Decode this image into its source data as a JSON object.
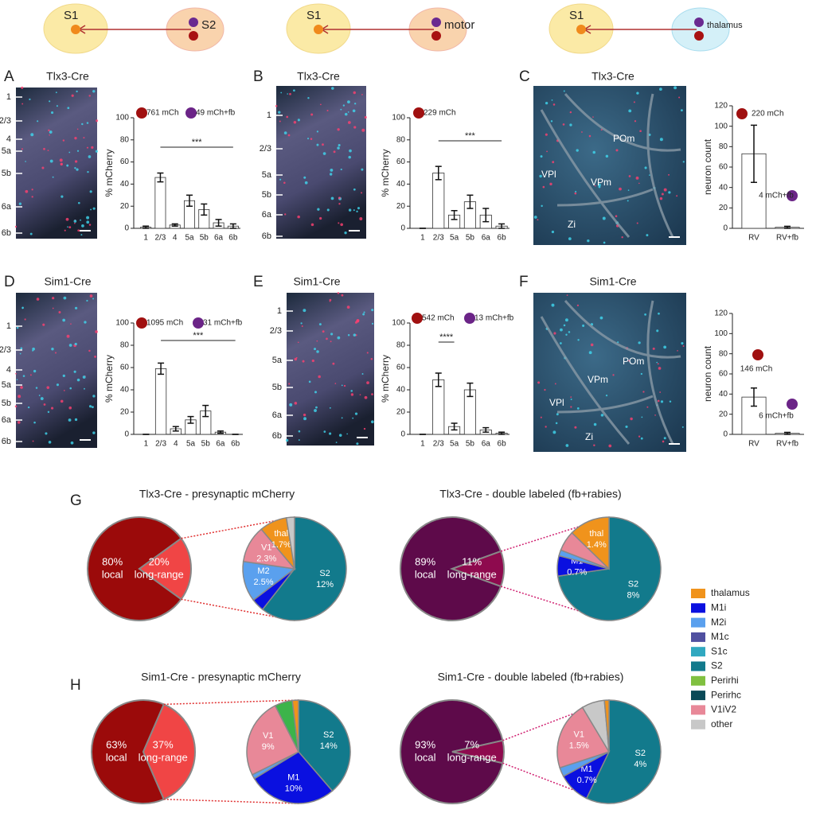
{
  "diagrams": [
    {
      "source": "S1",
      "target": "S2",
      "target_color": "#f9d3ad"
    },
    {
      "source": "S1",
      "target": "motor",
      "target_color": "#f9d3ad"
    },
    {
      "source": "S1",
      "target": "thalamus",
      "target_color": "#d4f0f8"
    }
  ],
  "panels": [
    {
      "letter": "A",
      "image_title": "Tlx3-Cre",
      "layer_labels": [
        "1",
        "2/3",
        "4",
        "5a",
        "5b",
        "6a",
        "6b"
      ]
    },
    {
      "letter": "B",
      "image_title": "Tlx3-Cre",
      "layer_labels": [
        "1",
        "2/3",
        "5a",
        "5b",
        "6a",
        "6b"
      ]
    },
    {
      "letter": "C",
      "image_title": "Tlx3-Cre",
      "region_labels": [
        "VPl",
        "VPm",
        "POm",
        "Zi"
      ]
    },
    {
      "letter": "D",
      "image_title": "Sim1-Cre",
      "layer_labels": [
        "1",
        "2/3",
        "4",
        "5a",
        "5b",
        "6a",
        "6b"
      ]
    },
    {
      "letter": "E",
      "image_title": "Sim1-Cre",
      "layer_labels": [
        "1",
        "2/3",
        "5a",
        "5b",
        "6a",
        "6b"
      ]
    },
    {
      "letter": "F",
      "image_title": "Sim1-Cre",
      "region_labels": [
        "VPl",
        "VPm",
        "POm",
        "Zi"
      ]
    }
  ],
  "chart_data": [
    {
      "type": "bar",
      "categories": [
        "1",
        "2/3",
        "4",
        "5a",
        "5b",
        "6a",
        "6b"
      ],
      "values": [
        1,
        46,
        3,
        25,
        17,
        5,
        2
      ],
      "errors": [
        1,
        4,
        1,
        5,
        5,
        3,
        2
      ],
      "ylim": [
        0,
        100
      ],
      "yticks": [
        0,
        20,
        40,
        60,
        80,
        100
      ],
      "ylabel": "% mCherry",
      "annotations": [
        {
          "text": "761 mCh",
          "color": "#a01010"
        },
        {
          "text": "49 mCh+fb",
          "color": "#6b2487"
        }
      ],
      "significance": "***"
    },
    {
      "type": "bar",
      "categories": [
        "1",
        "2/3",
        "5a",
        "5b",
        "6a",
        "6b"
      ],
      "values": [
        0,
        50,
        12,
        24,
        12,
        2
      ],
      "errors": [
        0,
        6,
        4,
        6,
        6,
        2
      ],
      "ylim": [
        0,
        100
      ],
      "yticks": [
        0,
        20,
        40,
        60,
        80,
        100
      ],
      "ylabel": "% mCherry",
      "annotations": [
        {
          "text": "229 mCh",
          "color": "#a01010"
        }
      ],
      "significance": "***"
    },
    {
      "type": "bar",
      "categories": [
        "RV",
        "RV+fb"
      ],
      "values": [
        73,
        1
      ],
      "errors": [
        28,
        1
      ],
      "ylim": [
        0,
        120
      ],
      "yticks": [
        0,
        20,
        40,
        60,
        80,
        100,
        120
      ],
      "ylabel": "neuron count",
      "annotations": [
        {
          "text": "220 mCh",
          "color": "#a01010"
        },
        {
          "text": "4 mCh+fb",
          "color": "#6b2487"
        }
      ]
    },
    {
      "type": "bar",
      "categories": [
        "1",
        "2/3",
        "4",
        "5a",
        "5b",
        "6a",
        "6b"
      ],
      "values": [
        0,
        59,
        5,
        13,
        21,
        2,
        0
      ],
      "errors": [
        0,
        5,
        2,
        3,
        5,
        1,
        0
      ],
      "ylim": [
        0,
        100
      ],
      "yticks": [
        0,
        20,
        40,
        60,
        80,
        100
      ],
      "ylabel": "% mCherry",
      "annotations": [
        {
          "text": "1095 mCh",
          "color": "#a01010"
        },
        {
          "text": "31 mCh+fb",
          "color": "#6b2487"
        }
      ],
      "significance": "***"
    },
    {
      "type": "bar",
      "categories": [
        "1",
        "2/3",
        "5a",
        "5b",
        "6a",
        "6b"
      ],
      "values": [
        0,
        49,
        7,
        40,
        4,
        1
      ],
      "errors": [
        0,
        6,
        3,
        6,
        2,
        1
      ],
      "ylim": [
        0,
        100
      ],
      "yticks": [
        0,
        20,
        40,
        60,
        80,
        100
      ],
      "ylabel": "% mCherry",
      "annotations": [
        {
          "text": "542 mCh",
          "color": "#a01010"
        },
        {
          "text": "13 mCh+fb",
          "color": "#6b2487"
        }
      ],
      "significance": "****"
    },
    {
      "type": "bar",
      "categories": [
        "RV",
        "RV+fb"
      ],
      "values": [
        37,
        1
      ],
      "errors": [
        9,
        1
      ],
      "ylim": [
        0,
        120
      ],
      "yticks": [
        0,
        20,
        40,
        60,
        80,
        100,
        120
      ],
      "ylabel": "neuron count",
      "annotations": [
        {
          "text": "146 mCh",
          "color": "#a01010"
        },
        {
          "text": "6 mCh+fb",
          "color": "#6b2487"
        }
      ]
    },
    {
      "type": "pie",
      "title": "Tlx3-Cre - presynaptic mCherry",
      "categories": [
        "local",
        "long-range"
      ],
      "values": [
        80,
        20
      ],
      "value_labels": [
        "80%",
        "20%"
      ],
      "colors": [
        "#9b0a0a",
        "#f04545"
      ]
    },
    {
      "type": "pie",
      "values": [
        12,
        0.8,
        2.5,
        2.3,
        1.7,
        0.5
      ],
      "colors": [
        "#127a8c",
        "#0a10e0",
        "#5aa0ee",
        "#e88898",
        "#f0931c",
        "#c8c8c8"
      ],
      "slice_names": [
        "S2",
        null,
        "M2",
        "V1",
        "thal",
        null
      ],
      "value_labels": [
        "12%",
        null,
        "2.5%",
        "2.3%",
        "1.7%",
        null
      ]
    },
    {
      "type": "pie",
      "title": "Tlx3-Cre - double labeled (fb+rabies)",
      "categories": [
        "local",
        "long-range"
      ],
      "values": [
        89,
        11
      ],
      "value_labels": [
        "89%",
        "11%"
      ],
      "colors": [
        "#5e0a4a",
        "#8e0a4e"
      ]
    },
    {
      "type": "pie",
      "values": [
        8,
        0.7,
        0.2,
        0.7,
        1.4
      ],
      "colors": [
        "#127a8c",
        "#0a10e0",
        "#5aa0ee",
        "#e88898",
        "#f0931c"
      ],
      "slice_names": [
        "S2",
        "M1",
        null,
        null,
        "thal"
      ],
      "value_labels": [
        "8%",
        "0.7%",
        null,
        null,
        "1.4%"
      ]
    },
    {
      "type": "pie",
      "title": "Sim1-Cre - presynaptic mCherry",
      "categories": [
        "local",
        "long-range"
      ],
      "values": [
        63,
        37
      ],
      "value_labels": [
        "63%",
        "37%"
      ],
      "colors": [
        "#9b0a0a",
        "#f04545"
      ]
    },
    {
      "type": "pie",
      "values": [
        14,
        10,
        0.5,
        9,
        2,
        0.7
      ],
      "colors": [
        "#127a8c",
        "#0a10e0",
        "#5aa0ee",
        "#e88898",
        "#3cb44a",
        "#f0931c"
      ],
      "slice_names": [
        "S2",
        "M1",
        null,
        "V1",
        null,
        null
      ],
      "value_labels": [
        "14%",
        "10%",
        null,
        "9%",
        null,
        null
      ]
    },
    {
      "type": "pie",
      "title": "Sim1-Cre - double labeled (fb+rabies)",
      "categories": [
        "local",
        "long-range"
      ],
      "values": [
        93,
        7
      ],
      "value_labels": [
        "93%",
        "7%"
      ],
      "colors": [
        "#5e0a4a",
        "#8e0a4e"
      ]
    },
    {
      "type": "pie",
      "values": [
        4,
        0.7,
        0.2,
        1.5,
        0.5,
        0.1
      ],
      "colors": [
        "#127a8c",
        "#0a10e0",
        "#5aa0ee",
        "#e88898",
        "#c8c8c8",
        "#f0931c"
      ],
      "slice_names": [
        "S2",
        "M1",
        null,
        "V1",
        null,
        null
      ],
      "value_labels": [
        "4%",
        "0.7%",
        null,
        "1.5%",
        null,
        null
      ]
    }
  ],
  "pie_panels": [
    {
      "letter": "G"
    },
    {
      "letter": "H"
    }
  ],
  "legend": {
    "names": [
      "thalamus",
      "M1i",
      "M2i",
      "M1c",
      "S1c",
      "S2",
      "Perirhi",
      "Perirhc",
      "V1iV2",
      "other"
    ],
    "colors": [
      "#f0931c",
      "#0a10e0",
      "#5aa0ee",
      "#5050a0",
      "#30a8c0",
      "#127a8c",
      "#80c040",
      "#0a4a58",
      "#e88898",
      "#c8c8c8"
    ]
  }
}
